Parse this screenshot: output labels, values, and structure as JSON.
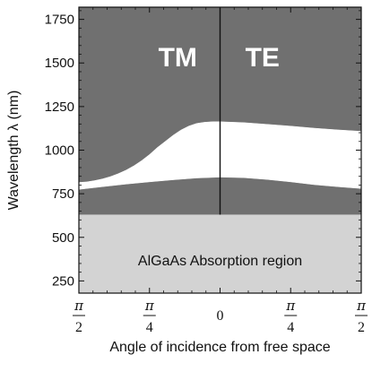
{
  "chart_data": {
    "type": "area",
    "xlabel": "Angle of incidence from free space",
    "ylabel": "Wavelength λ (nm)",
    "xlim": [
      -90,
      90
    ],
    "ylim": [
      180,
      1820
    ],
    "x_ticks": [
      {
        "value": -90,
        "num": "π",
        "den": "2"
      },
      {
        "value": -45,
        "num": "π",
        "den": "4"
      },
      {
        "value": 0,
        "num": "",
        "den": "0"
      },
      {
        "value": 45,
        "num": "π",
        "den": "4"
      },
      {
        "value": 90,
        "num": "π",
        "den": "2"
      }
    ],
    "y_ticks": [
      "250",
      "500",
      "750",
      "1000",
      "1250",
      "1500",
      "1750"
    ],
    "band_lower_edge": {
      "x": [
        -90,
        -75,
        -60,
        -45,
        -30,
        -15,
        0,
        15,
        30,
        45,
        60,
        75,
        90
      ],
      "y": [
        775,
        790,
        805,
        818,
        830,
        840,
        845,
        842,
        832,
        818,
        802,
        790,
        780
      ]
    },
    "band_upper_edge": {
      "x": [
        -90,
        -85,
        -80,
        -75,
        -70,
        -65,
        -60,
        -55,
        -50,
        -45,
        -40,
        -35,
        -30,
        -25,
        -20,
        -15,
        -10,
        -5,
        0,
        15,
        30,
        45,
        60,
        75,
        90
      ],
      "y": [
        815,
        818,
        825,
        835,
        848,
        865,
        885,
        910,
        940,
        975,
        1015,
        1050,
        1085,
        1115,
        1138,
        1153,
        1160,
        1163,
        1163,
        1158,
        1148,
        1138,
        1126,
        1116,
        1108
      ]
    },
    "absorption_edge": 630,
    "divider_x": 0,
    "regions": {
      "left_label": "TM",
      "right_label": "TE",
      "absorption_label": "AlGaAs Absorption region"
    },
    "colors": {
      "stopband": "#707070",
      "absorption": "#d3d3d3",
      "passband": "#ffffff",
      "axis": "#111111"
    }
  }
}
